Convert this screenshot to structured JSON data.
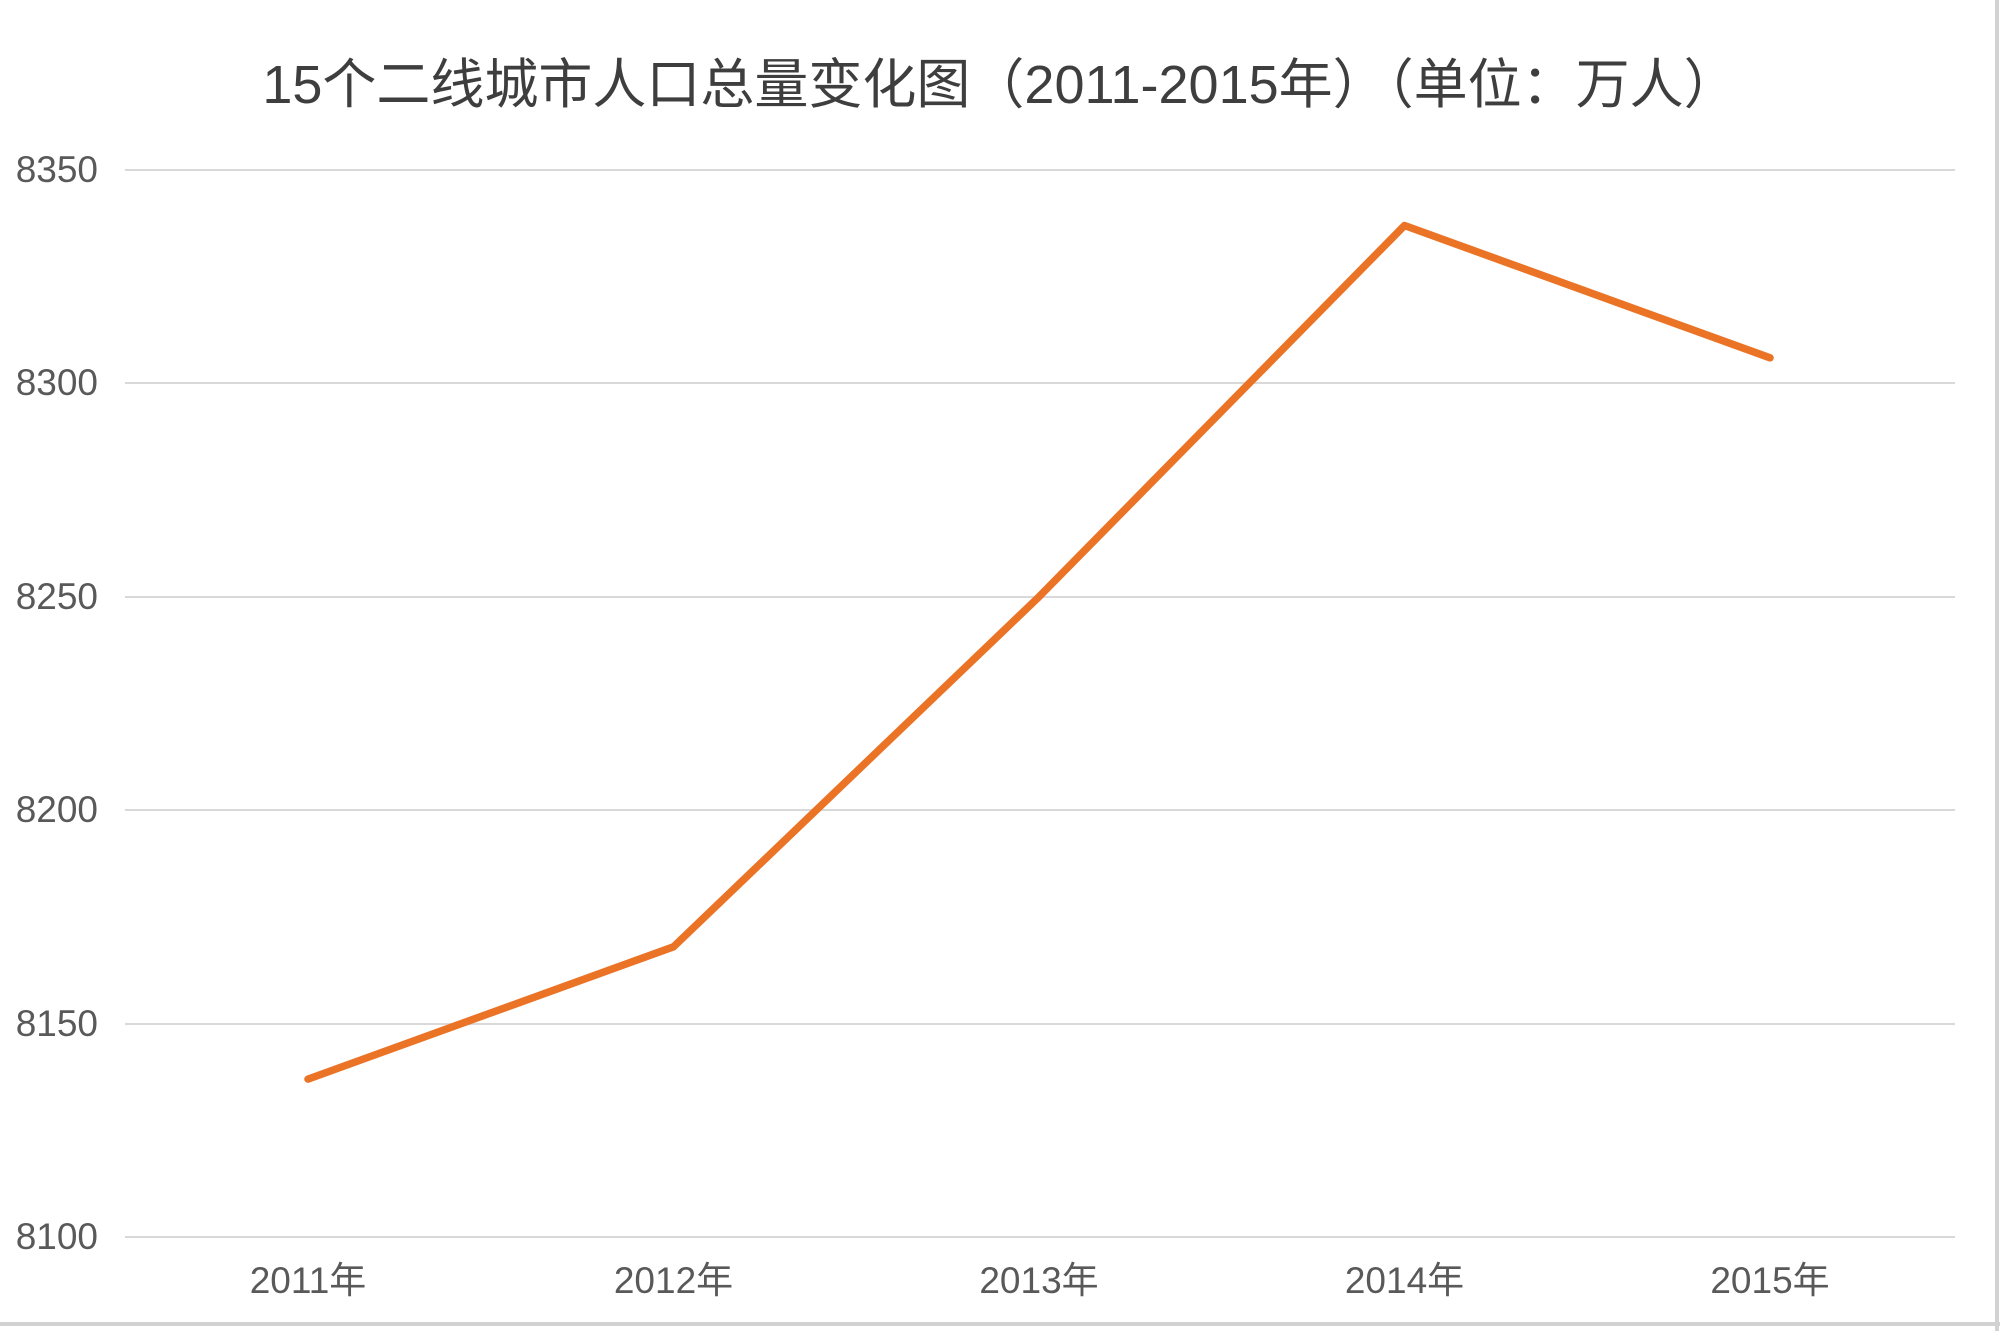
{
  "chart_data": {
    "type": "line",
    "title": "15个二线城市人口总量变化图（2011-2015年）（单位：万人）",
    "categories": [
      "2011年",
      "2012年",
      "2013年",
      "2014年",
      "2015年"
    ],
    "values": [
      8137,
      8168,
      8250,
      8337,
      8306
    ],
    "xlabel": "",
    "ylabel": "",
    "ylim": [
      8100,
      8350
    ],
    "yticks": [
      8100,
      8150,
      8200,
      8250,
      8300,
      8350
    ],
    "grid": true,
    "legend": false,
    "colors": {
      "line": "#EA7326",
      "grid": "#D9D9D9",
      "title": "#3E3E3E",
      "tick_label": "#595959",
      "image_edge": "#D2D2D2"
    }
  }
}
